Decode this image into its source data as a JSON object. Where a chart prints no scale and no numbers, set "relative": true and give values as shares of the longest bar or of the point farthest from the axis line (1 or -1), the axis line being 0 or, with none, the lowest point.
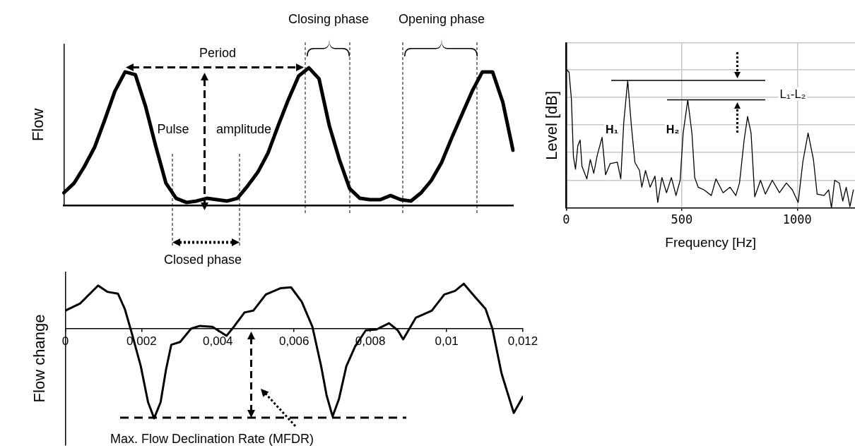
{
  "chart_data": [
    {
      "type": "line",
      "relative": true,
      "ylabel": "Flow",
      "color": "#000000",
      "marker": "none",
      "annotations": [
        "Period",
        "Pulse",
        "amplitude",
        "Closing phase",
        "Opening phase",
        "Closed phase"
      ],
      "categories": [
        null,
        null,
        null,
        null,
        null,
        null,
        null,
        null,
        null,
        null,
        null,
        null,
        null,
        null,
        null,
        null,
        null,
        null,
        null,
        null,
        null,
        null,
        null,
        null,
        null,
        null,
        null,
        null,
        null,
        null,
        null,
        null,
        null,
        null,
        null,
        null,
        null,
        null,
        null,
        null,
        null,
        null,
        null,
        null,
        null
      ],
      "values": [
        0.09,
        0.16,
        0.28,
        0.42,
        0.62,
        0.83,
        0.97,
        0.95,
        0.72,
        0.43,
        0.16,
        0.05,
        0.02,
        0.03,
        0.05,
        0.04,
        0.03,
        0.05,
        0.14,
        0.24,
        0.38,
        0.58,
        0.77,
        0.94,
        1,
        0.92,
        0.58,
        0.33,
        0.12,
        0.05,
        0.04,
        0.04,
        0.07,
        0.04,
        0.03,
        0.09,
        0.18,
        0.31,
        0.49,
        0.66,
        0.83,
        0.97,
        0.97,
        0.75,
        0.4
      ]
    },
    {
      "type": "line",
      "relative": true,
      "ylabel": "Flow change",
      "color": "#000000",
      "marker": "none",
      "annotations": [
        "Max. Flow Declination Rate (MFDR)"
      ],
      "xlim": [
        0,
        0.012
      ],
      "xticks": [
        0,
        {
          "value": 0.002,
          "label": "0,002"
        },
        {
          "value": 0.004,
          "label": "0,004"
        },
        {
          "value": 0.006,
          "label": "0,006"
        },
        {
          "value": 0.008,
          "label": "0,008"
        },
        {
          "value": 0.01,
          "label": "0,01"
        },
        {
          "value": 0.012,
          "label": "0,012"
        }
      ],
      "x": [
        0,
        0.00039,
        0.00086,
        0.0011,
        0.00138,
        0.00156,
        0.00175,
        0.00198,
        0.00217,
        0.00233,
        0.0025,
        0.00264,
        0.00278,
        0.00301,
        0.0033,
        0.00353,
        0.00386,
        0.00423,
        0.00442,
        0.0047,
        0.00493,
        0.00526,
        0.00564,
        0.00592,
        0.0062,
        0.00648,
        0.00671,
        0.00685,
        0.00701,
        0.00718,
        0.00737,
        0.0076,
        0.00788,
        0.00816,
        0.00849,
        0.00872,
        0.00886,
        0.00919,
        0.00961,
        0.00994,
        0.01022,
        0.01045,
        0.01069,
        0.01102,
        0.0112,
        0.01144,
        0.01176,
        0.012
      ],
      "values": [
        0.2,
        0.28,
        0.48,
        0.41,
        0.39,
        0.22,
        -0.06,
        -0.42,
        -0.82,
        -1,
        -0.82,
        -0.46,
        -0.18,
        -0.15,
        0,
        0.03,
        0.02,
        -0.08,
        0.02,
        0.18,
        0.2,
        0.38,
        0.45,
        0.46,
        0.3,
        0.02,
        -0.42,
        -0.74,
        -0.98,
        -0.78,
        -0.42,
        -0.2,
        -0.02,
        -0.01,
        0.06,
        -0.02,
        -0.12,
        0.12,
        0.2,
        0.38,
        0.42,
        0.5,
        0.38,
        0.22,
        0,
        -0.5,
        -0.94,
        -0.76
      ]
    },
    {
      "type": "line",
      "relative": true,
      "xlabel": "Frequency [Hz]",
      "ylabel": "Level [dB]",
      "color": "#000000",
      "marker": "none",
      "grid": true,
      "annotations": [
        "H₁",
        "H₂",
        "L₁-L₂"
      ],
      "ref_lines": [
        {
          "axis": "y",
          "value": 0.92
        },
        {
          "axis": "y",
          "value": 0.78
        }
      ],
      "xlim": [
        0,
        1250
      ],
      "xticks": [
        0,
        500,
        1000
      ],
      "x": [
        0,
        12,
        22,
        31,
        40,
        50,
        60,
        68,
        89,
        104,
        119,
        134,
        155,
        170,
        190,
        221,
        236,
        249,
        266,
        282,
        297,
        317,
        327,
        343,
        363,
        384,
        396,
        414,
        434,
        455,
        475,
        493,
        506,
        526,
        544,
        556,
        571,
        597,
        628,
        648,
        679,
        709,
        734,
        750,
        770,
        785,
        800,
        816,
        841,
        862,
        892,
        923,
        953,
        979,
        1004,
        1024,
        1047,
        1070,
        1086,
        1116,
        1136,
        1148,
        1162,
        1182,
        1197,
        1212,
        1228,
        1243
      ],
      "values": [
        1,
        0.98,
        0.79,
        0.37,
        0.28,
        0.45,
        0.49,
        0.3,
        0.21,
        0.35,
        0.25,
        0.38,
        0.51,
        0.24,
        0.32,
        0.33,
        0.21,
        0.62,
        0.92,
        0.59,
        0.33,
        0.27,
        0.15,
        0.27,
        0.15,
        0.23,
        0.04,
        0.22,
        0.11,
        0.22,
        0.09,
        0.2,
        0.54,
        0.78,
        0.54,
        0.22,
        0.15,
        0.13,
        0.09,
        0.21,
        0.11,
        0.15,
        0.09,
        0.18,
        0.49,
        0.66,
        0.54,
        0.08,
        0.2,
        0.1,
        0.2,
        0.11,
        0.18,
        0.13,
        0.04,
        0.33,
        0.54,
        0.35,
        0.1,
        0.09,
        0.13,
        0,
        0.2,
        0.18,
        0.05,
        0.15,
        0.01,
        0.13
      ]
    }
  ]
}
